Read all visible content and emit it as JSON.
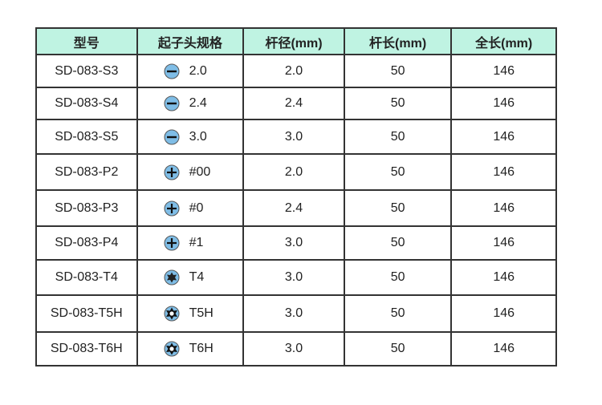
{
  "headers": [
    "型号",
    "起子头规格",
    "杆径(mm)",
    "杆长(mm)",
    "全长(mm)"
  ],
  "colors": {
    "header_bg": "#bff3e2",
    "icon_fill": "#7fbde6",
    "border": "#333333"
  },
  "rows": [
    {
      "model": "SD-083-S3",
      "tip_icon": "slotted",
      "tip": "2.0",
      "shank_dia": "2.0",
      "shank_len": "50",
      "total_len": "146"
    },
    {
      "model": "SD-083-S4",
      "tip_icon": "slotted",
      "tip": "2.4",
      "shank_dia": "2.4",
      "shank_len": "50",
      "total_len": "146"
    },
    {
      "model": "SD-083-S5",
      "tip_icon": "slotted",
      "tip": "3.0",
      "shank_dia": "3.0",
      "shank_len": "50",
      "total_len": "146"
    },
    {
      "model": "SD-083-P2",
      "tip_icon": "phillips",
      "tip": "#00",
      "shank_dia": "2.0",
      "shank_len": "50",
      "total_len": "146"
    },
    {
      "model": "SD-083-P3",
      "tip_icon": "phillips",
      "tip": "#0",
      "shank_dia": "2.4",
      "shank_len": "50",
      "total_len": "146"
    },
    {
      "model": "SD-083-P4",
      "tip_icon": "phillips",
      "tip": "#1",
      "shank_dia": "3.0",
      "shank_len": "50",
      "total_len": "146"
    },
    {
      "model": "SD-083-T4",
      "tip_icon": "torx",
      "tip": "T4",
      "shank_dia": "3.0",
      "shank_len": "50",
      "total_len": "146"
    },
    {
      "model": "SD-083-T5H",
      "tip_icon": "torx-hole",
      "tip": "T5H",
      "shank_dia": "3.0",
      "shank_len": "50",
      "total_len": "146"
    },
    {
      "model": "SD-083-T6H",
      "tip_icon": "torx-hole",
      "tip": "T6H",
      "shank_dia": "3.0",
      "shank_len": "50",
      "total_len": "146"
    }
  ]
}
